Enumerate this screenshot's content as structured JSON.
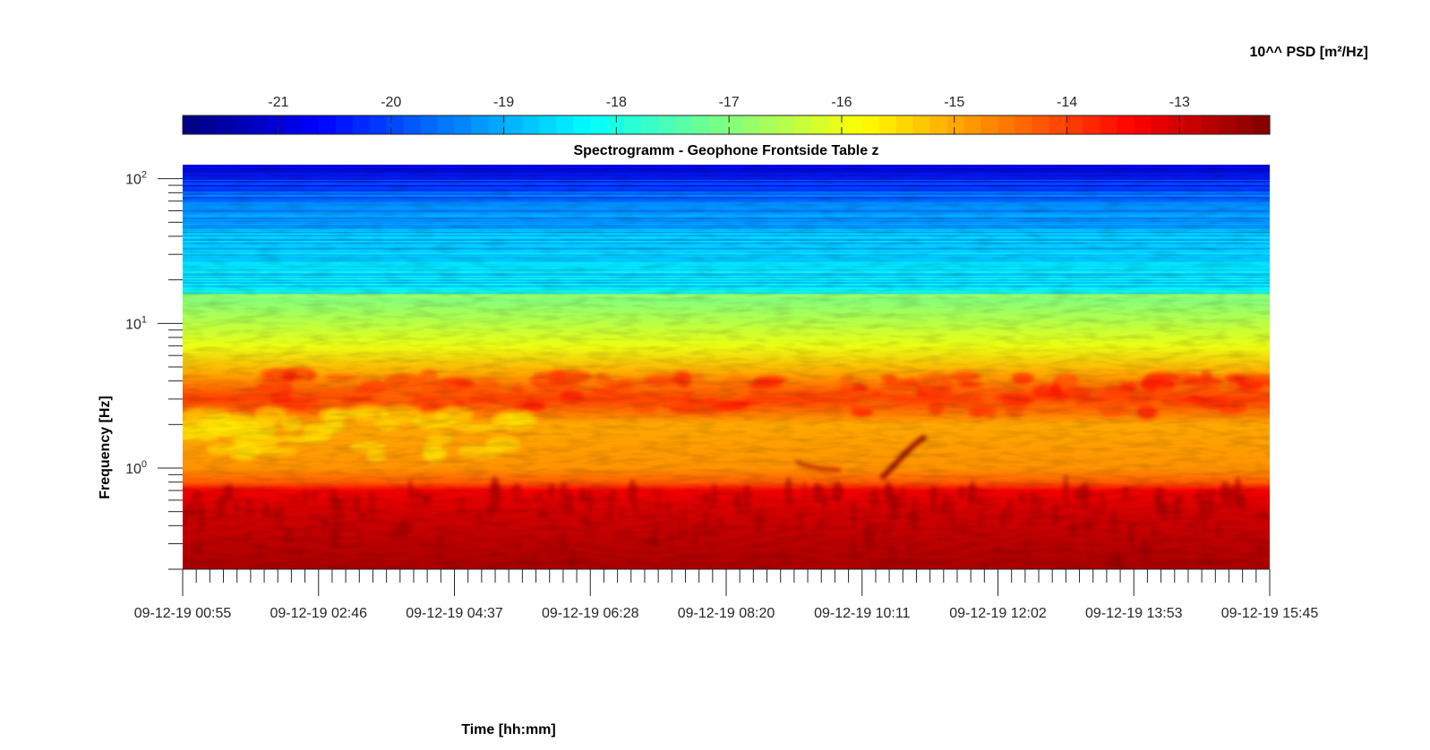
{
  "chart_data": {
    "type": "heatmap",
    "title": "Spectrogramm - Geophone Frontside Table z",
    "xlabel": "Time [hh:mm]",
    "ylabel": "Frequency [Hz]",
    "x_tick_labels": [
      "09-12-19 00:55",
      "09-12-19 02:46",
      "09-12-19 04:37",
      "09-12-19 06:28",
      "09-12-19 08:20",
      "09-12-19 10:11",
      "09-12-19 12:02",
      "09-12-19 13:53",
      "09-12-19 15:45"
    ],
    "y_scale": "log",
    "ylim": [
      0.2,
      125
    ],
    "y_ticks": [
      {
        "value": 1,
        "base": "10",
        "exponent": "0"
      },
      {
        "value": 10,
        "base": "10",
        "exponent": "1"
      },
      {
        "value": 100,
        "base": "10",
        "exponent": "2"
      }
    ],
    "colorbar": {
      "label": "10^^ PSD [m²/Hz]",
      "colormap": "jet",
      "range": [
        -21.85,
        -12.2
      ],
      "ticks": [
        -21,
        -20,
        -19,
        -18,
        -17,
        -16,
        -15,
        -14,
        -13
      ],
      "location": "top"
    },
    "spectral_profile": [
      {
        "freq": 0.2,
        "log_psd": -12.6
      },
      {
        "freq": 0.5,
        "log_psd": -13.0
      },
      {
        "freq": 0.7,
        "log_psd": -13.3
      },
      {
        "freq": 0.8,
        "log_psd": -14.3
      },
      {
        "freq": 1.0,
        "log_psd": -14.8
      },
      {
        "freq": 2.0,
        "log_psd": -15.0
      },
      {
        "freq": 3.0,
        "log_psd": -14.0
      },
      {
        "freq": 4.5,
        "log_psd": -15.0
      },
      {
        "freq": 7.0,
        "log_psd": -16.0
      },
      {
        "freq": 15.0,
        "log_psd": -17.0
      },
      {
        "freq": 17.0,
        "log_psd": -18.5
      },
      {
        "freq": 40.0,
        "log_psd": -18.8
      },
      {
        "freq": 70.0,
        "log_psd": -19.5
      },
      {
        "freq": 125.0,
        "log_psd": -21.0
      }
    ],
    "grid": false
  }
}
